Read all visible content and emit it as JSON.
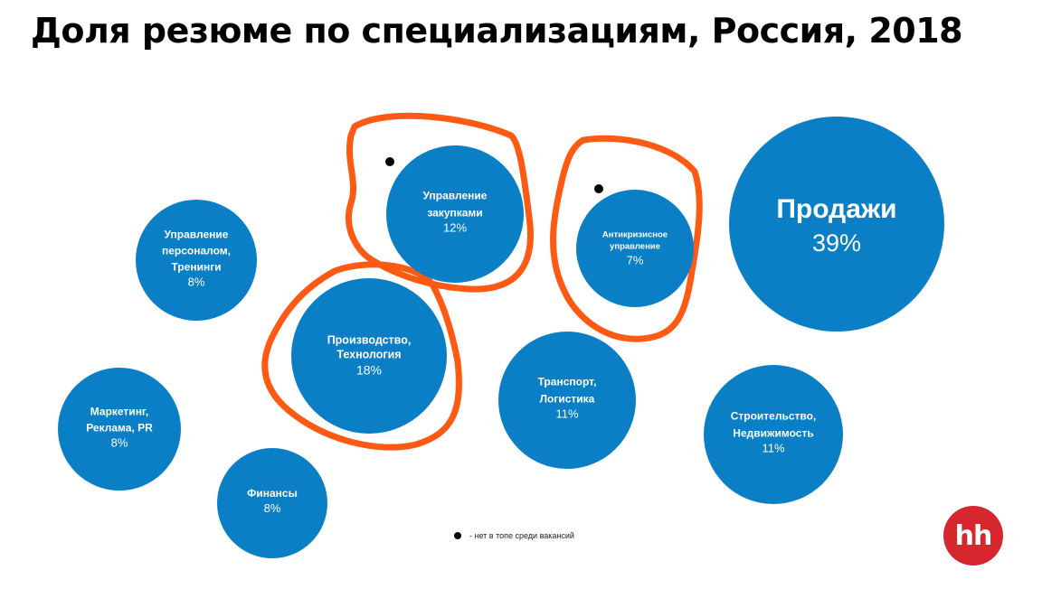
{
  "page": {
    "title": "Доля резюме по специализациям, Россия, 2018",
    "legend_text": "- нет в топе среди вакансий",
    "logo_text": "hh"
  },
  "chart_data": {
    "type": "bubble",
    "title": "Доля резюме по специализациям, Россия, 2018",
    "value_unit": "%",
    "bubble_color": "#0a7fc6",
    "highlight_color": "#ff5a14",
    "marker_color": "#000000",
    "categories": [
      {
        "name": "Продажи",
        "lines": [
          "Продажи"
        ],
        "value": 39,
        "label": "39%",
        "not_in_top_vacancies": false,
        "highlighted": false
      },
      {
        "name": "Производство, Технология",
        "lines": [
          "Производство,",
          "Технология"
        ],
        "value": 18,
        "label": "18%",
        "not_in_top_vacancies": false,
        "highlighted": true
      },
      {
        "name": "Управление закупками",
        "lines": [
          "Управление",
          "закупками"
        ],
        "value": 12,
        "label": "12%",
        "not_in_top_vacancies": true,
        "highlighted": true
      },
      {
        "name": "Транспорт, Логистика",
        "lines": [
          "Транспорт,",
          "Логистика"
        ],
        "value": 11,
        "label": "11%",
        "not_in_top_vacancies": false,
        "highlighted": false
      },
      {
        "name": "Строительство, Недвижимость",
        "lines": [
          "Строительство,",
          "Недвижимость"
        ],
        "value": 11,
        "label": "11%",
        "not_in_top_vacancies": false,
        "highlighted": false
      },
      {
        "name": "Управление персоналом, Тренинги",
        "lines": [
          "Управление",
          "персоналом,",
          "Тренинги"
        ],
        "value": 8,
        "label": "8%",
        "not_in_top_vacancies": false,
        "highlighted": false
      },
      {
        "name": "Маркетинг, Реклама, PR",
        "lines": [
          "Маркетинг,",
          "Реклама, PR"
        ],
        "value": 8,
        "label": "8%",
        "not_in_top_vacancies": false,
        "highlighted": false
      },
      {
        "name": "Финансы",
        "lines": [
          "Финансы"
        ],
        "value": 8,
        "label": "8%",
        "not_in_top_vacancies": false,
        "highlighted": false
      },
      {
        "name": "Антикризисное управление",
        "lines": [
          "Антикризисное",
          "управление"
        ],
        "value": 7,
        "label": "7%",
        "not_in_top_vacancies": true,
        "highlighted": true
      }
    ]
  }
}
